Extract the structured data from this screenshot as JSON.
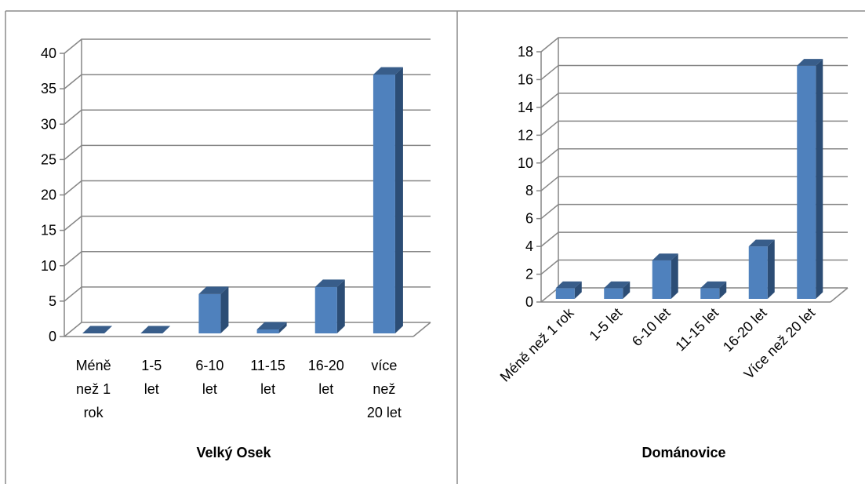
{
  "chart_data": [
    {
      "type": "bar",
      "title": "",
      "xlabel": "Velký Osek",
      "ylabel": "",
      "categories": [
        "Méně než 1 rok",
        "1-5 let",
        "6-10 let",
        "11-15 let",
        "16-20 let",
        "více než 20 let"
      ],
      "category_lines": [
        [
          "Méně",
          "než 1",
          "rok"
        ],
        [
          "1-5",
          "let"
        ],
        [
          "6-10",
          "let"
        ],
        [
          "11-15",
          "let"
        ],
        [
          "16-20",
          "let"
        ],
        [
          "více",
          "než",
          "20 let"
        ]
      ],
      "values": [
        0,
        0,
        6,
        1,
        7,
        37
      ],
      "ylim": [
        0,
        40
      ],
      "yticks": [
        0,
        5,
        10,
        15,
        20,
        25,
        30,
        35,
        40
      ],
      "grid": true,
      "legend": "none"
    },
    {
      "type": "bar",
      "title": "",
      "xlabel": "Dománovice",
      "ylabel": "",
      "categories": [
        "Méně než 1 rok",
        "1-5 let",
        "6-10 let",
        "11-15 let",
        "16-20 let",
        "Více než 20 let"
      ],
      "values": [
        1,
        1,
        3,
        1,
        4,
        17
      ],
      "ylim": [
        0,
        18
      ],
      "yticks": [
        0,
        2,
        4,
        6,
        8,
        10,
        12,
        14,
        16,
        18
      ],
      "grid": true,
      "legend": "none"
    }
  ],
  "colors": {
    "bar_front": "#4f81bd",
    "bar_side": "#2c4d75",
    "bar_top": "#385d8a",
    "grid": "#868686",
    "frame": "#8c8c8c"
  }
}
